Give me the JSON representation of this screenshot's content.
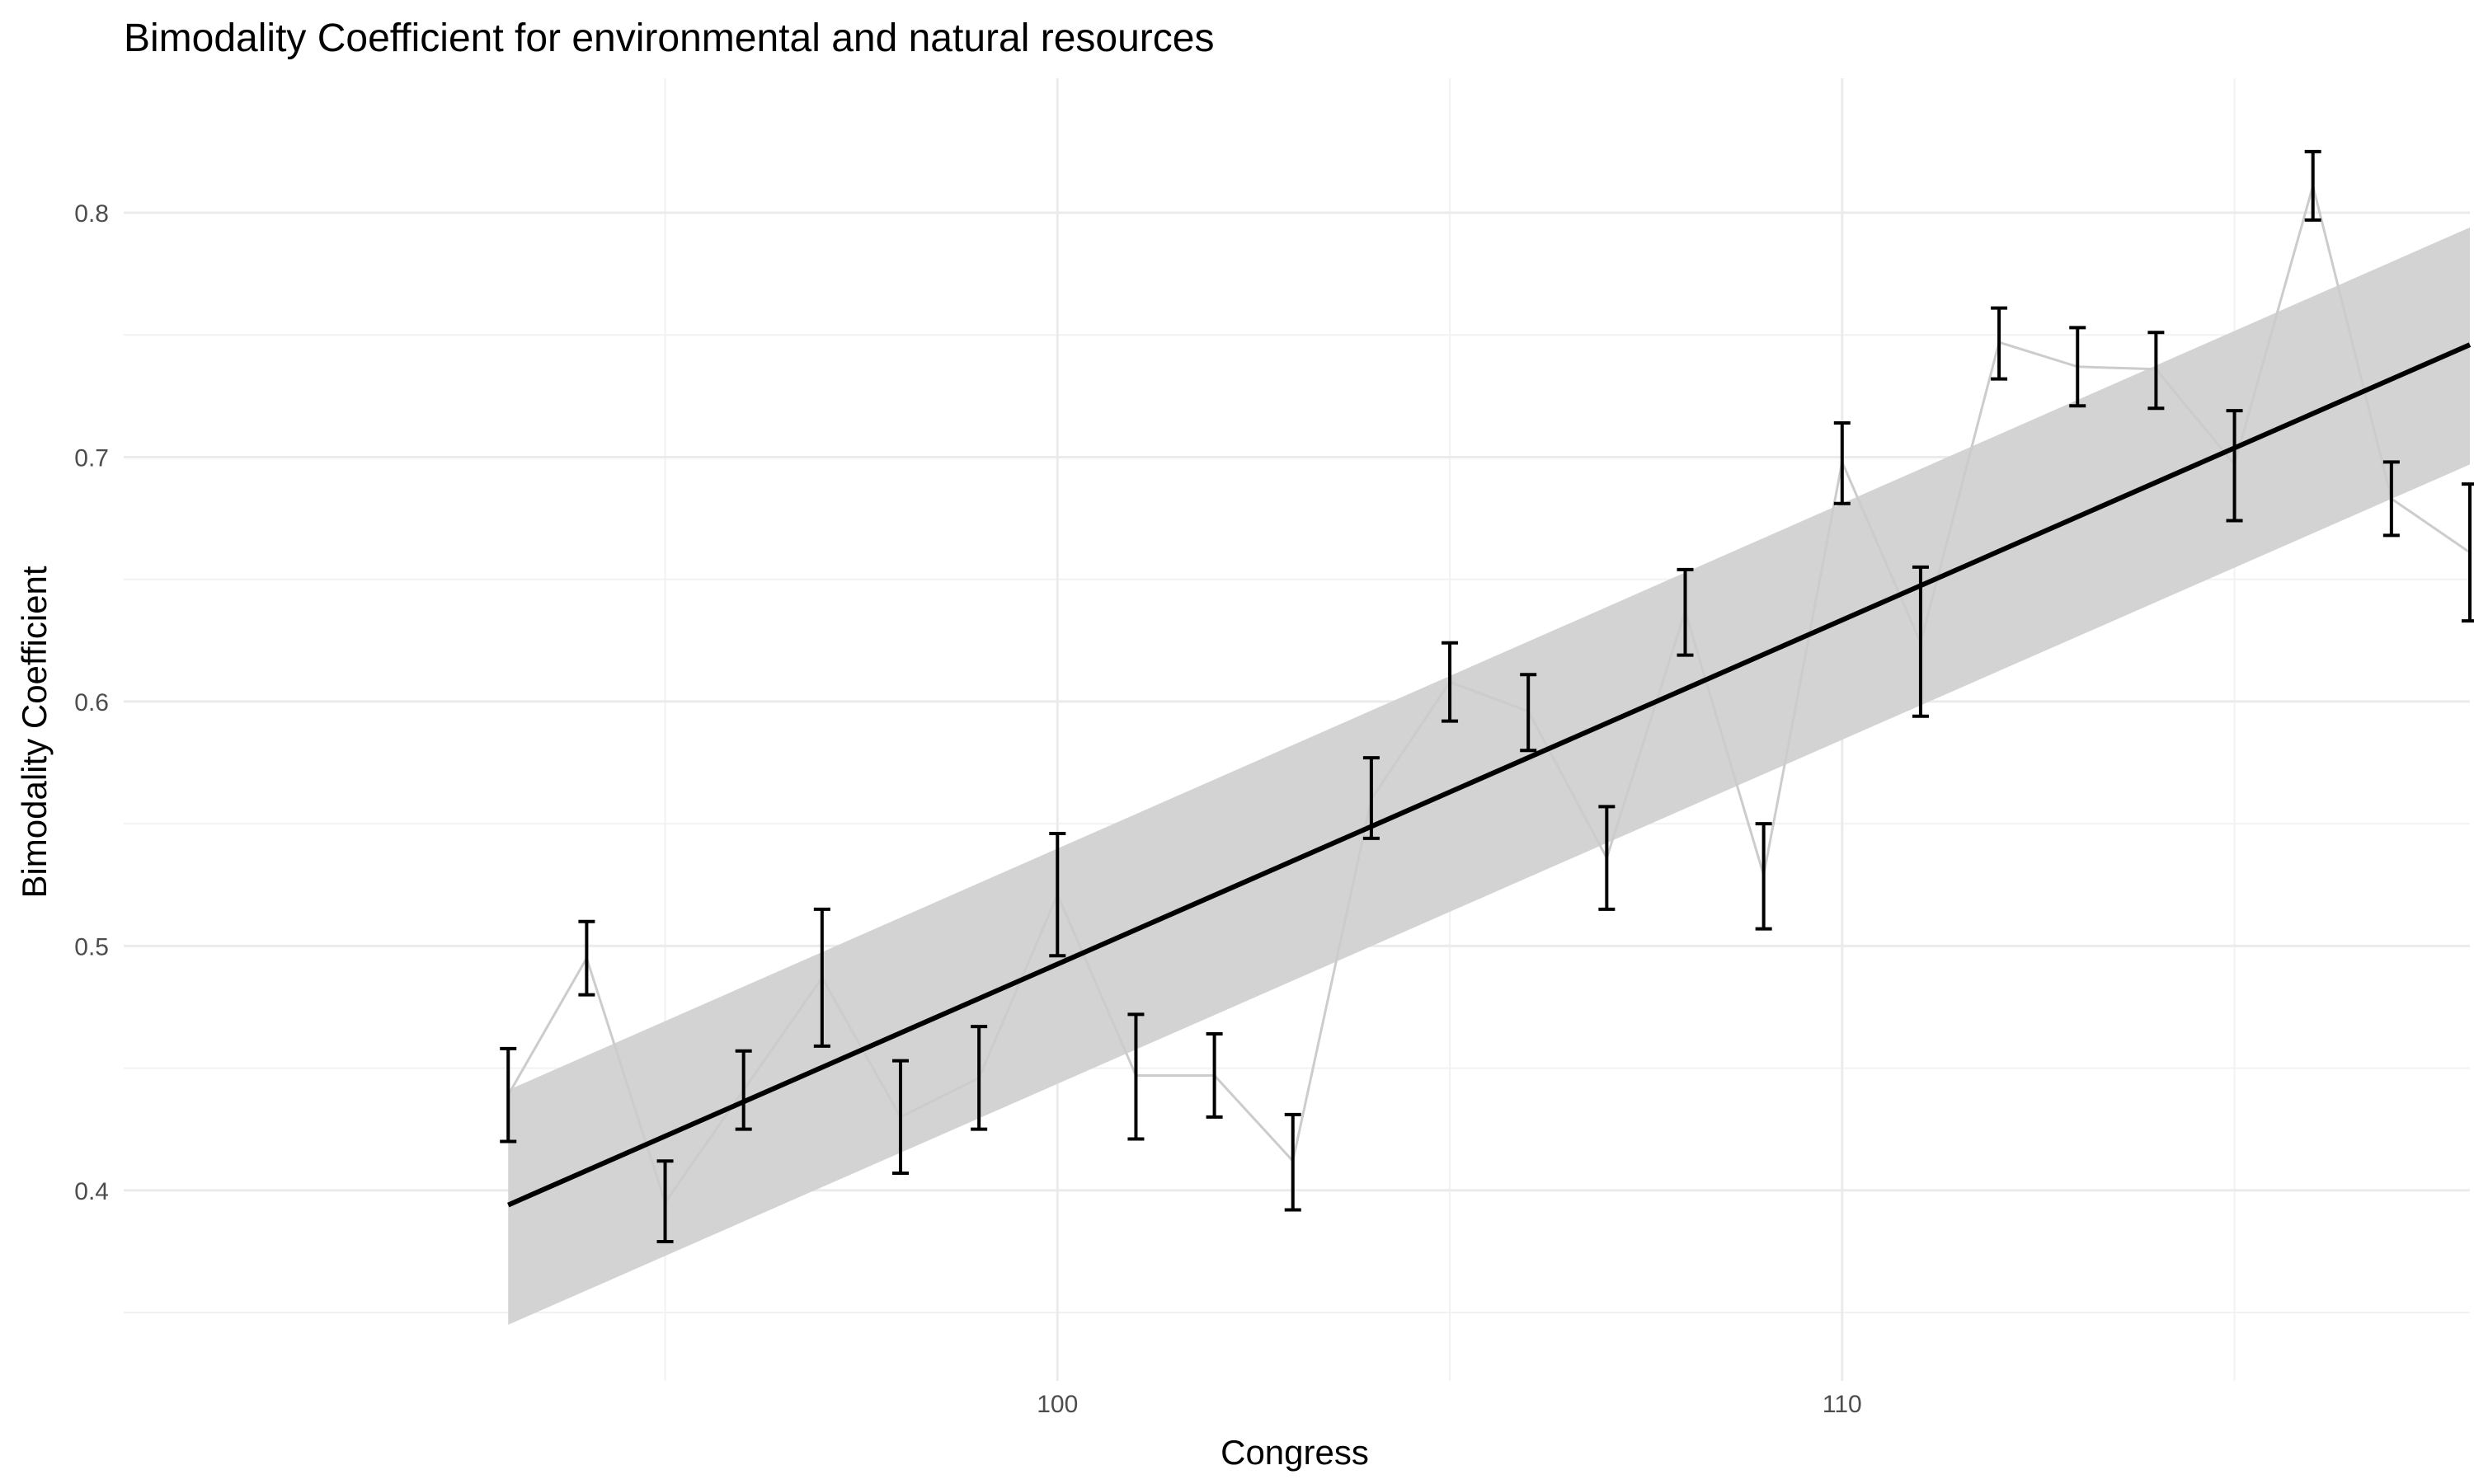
{
  "chart_data": {
    "type": "line",
    "title": "Bimodality Coefficient for environmental and natural resources",
    "xlabel": "Congress",
    "ylabel": "Bimodality Coefficient",
    "xlim": [
      88.1,
      118.0
    ],
    "ylim": [
      0.322,
      0.855
    ],
    "x_ticks": [
      100,
      110
    ],
    "x_minor_ticks": [
      95,
      105,
      115
    ],
    "y_ticks": [
      0.4,
      0.5,
      0.6,
      0.7,
      0.8
    ],
    "y_minor_ticks": [
      0.35,
      0.45,
      0.55,
      0.65,
      0.75
    ],
    "grid": true,
    "legend": "none",
    "series": [
      {
        "role": "observed",
        "color": "#cccccc",
        "x": [
          93,
          94,
          95,
          96,
          97,
          98,
          99,
          100,
          101,
          102,
          103,
          104,
          105,
          106,
          107,
          108,
          109,
          110,
          111,
          112,
          113,
          114,
          115,
          116,
          117,
          118
        ],
        "y": [
          0.439,
          0.495,
          0.395,
          0.441,
          0.487,
          0.43,
          0.446,
          0.521,
          0.447,
          0.447,
          0.412,
          0.56,
          0.608,
          0.596,
          0.536,
          0.637,
          0.529,
          0.698,
          0.624,
          0.747,
          0.737,
          0.736,
          0.697,
          0.811,
          0.683,
          0.661
        ],
        "lower": [
          0.42,
          0.48,
          0.379,
          0.425,
          0.459,
          0.407,
          0.425,
          0.496,
          0.421,
          0.43,
          0.392,
          0.544,
          0.592,
          0.58,
          0.515,
          0.619,
          0.507,
          0.681,
          0.594,
          0.732,
          0.721,
          0.72,
          0.674,
          0.797,
          0.668,
          0.633
        ],
        "upper": [
          0.458,
          0.51,
          0.412,
          0.457,
          0.515,
          0.453,
          0.467,
          0.546,
          0.472,
          0.464,
          0.431,
          0.577,
          0.624,
          0.611,
          0.557,
          0.654,
          0.55,
          0.714,
          0.655,
          0.761,
          0.753,
          0.751,
          0.719,
          0.825,
          0.698,
          0.689
        ]
      },
      {
        "role": "linear-fit",
        "color": "#000000",
        "x": [
          93,
          118
        ],
        "y": [
          0.394,
          0.746
        ],
        "ci_lower": [
          0.345,
          0.697
        ],
        "ci_upper": [
          0.441,
          0.794
        ],
        "ci_color": "#d3d3d3"
      }
    ]
  }
}
